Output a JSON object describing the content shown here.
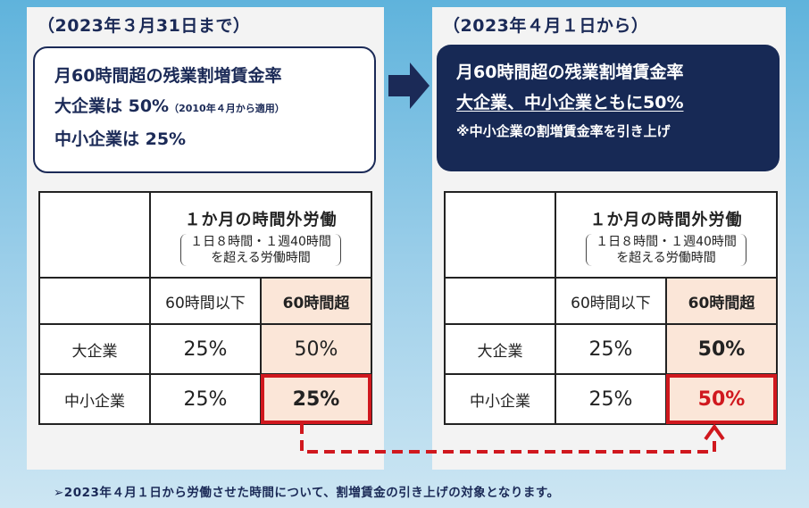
{
  "left": {
    "date": "（2023年３月31日まで）",
    "line1": "月60時間超の残業割増賃金率",
    "line2_main": "大企業は 50%",
    "line2_note": "（2010年４月から適用）",
    "line3": "中小企業は 25%",
    "table": {
      "header_main": "１か月の時間外労働",
      "header_sub1": "１日８時間・１週40時間",
      "header_sub2": "を超える労働時間",
      "col1": "60時間以下",
      "col2": "60時間超",
      "row1_label": "大企業",
      "row1_v1": "25%",
      "row1_v2": "50%",
      "row2_label": "中小企業",
      "row2_v1": "25%",
      "row2_v2": "25%"
    }
  },
  "right": {
    "date": "（2023年４月１日から）",
    "line1": "月60時間超の残業割増賃金率",
    "line2": "大企業、中小企業ともに50%",
    "line3": "※中小企業の割増賃金率を引き上げ",
    "table": {
      "header_main": "１か月の時間外労働",
      "header_sub1": "１日８時間・１週40時間",
      "header_sub2": "を超える労働時間",
      "col1": "60時間以下",
      "col2": "60時間超",
      "row1_label": "大企業",
      "row1_v1": "25%",
      "row1_v2": "50%",
      "row2_label": "中小企業",
      "row2_v1": "25%",
      "row2_v2": "50%"
    }
  },
  "footer": "➢2023年４月１日から労働させた時間について、割増賃金の引き上げの対象となります。",
  "colors": {
    "navy": "#172955",
    "highlight": "#fbe6d8",
    "red": "#d0181e"
  }
}
